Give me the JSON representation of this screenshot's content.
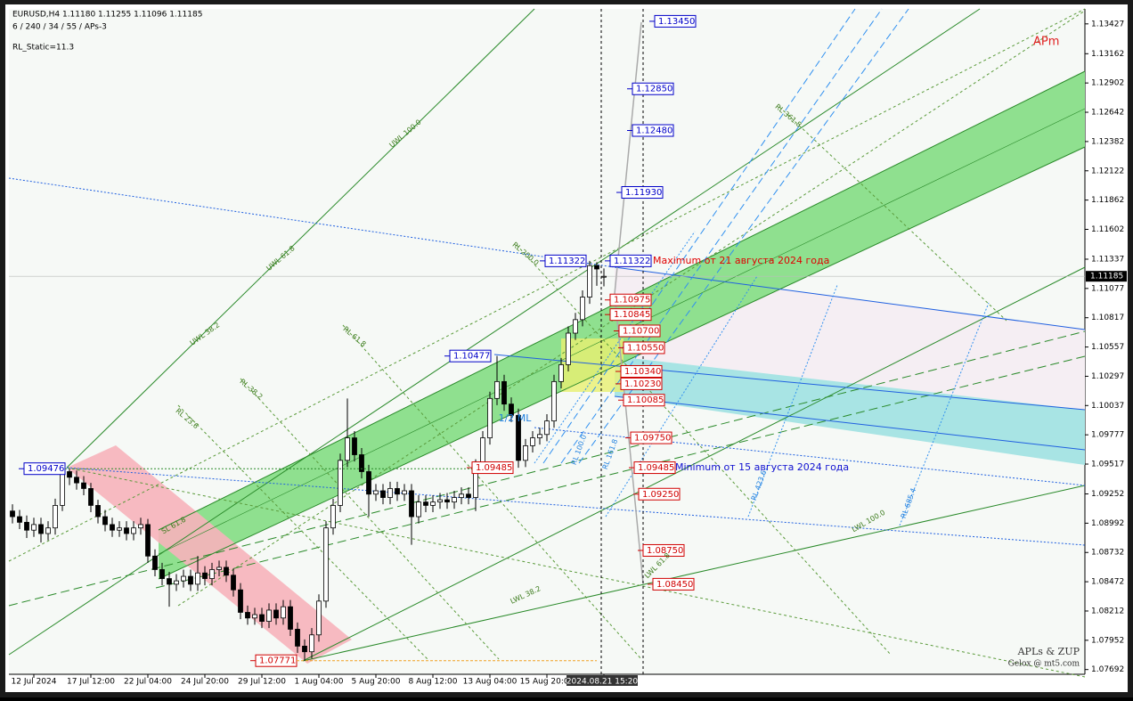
{
  "chart_data": {
    "type": "candlestick",
    "header": "EURUSD,H4  1.11180 1.11255 1.11096 1.11185",
    "subheader": "6 / 240 / 34 / 55 / APs-3",
    "indicator": "RL_Static=11.3",
    "corner_label": "APm",
    "watermark": "APLs & ZUP",
    "watermark_sub": "Gelox @ mt5.com",
    "categories": [
      null,
      null,
      null,
      "12 Jul 2024",
      null,
      null,
      null,
      null,
      null,
      null,
      null,
      "17 Jul 12:00",
      null,
      null,
      null,
      null,
      null,
      null,
      null,
      "22 Jul 04:00",
      null,
      null,
      null,
      null,
      null,
      null,
      null,
      "24 Jul 20:00",
      null,
      null,
      null,
      null,
      null,
      null,
      null,
      "29 Jul 12:00",
      null,
      null,
      null,
      null,
      null,
      null,
      null,
      "1 Aug 04:00",
      null,
      null,
      null,
      null,
      null,
      null,
      null,
      "5 Aug 20:00",
      null,
      null,
      null,
      null,
      null,
      null,
      null,
      "8 Aug 12:00",
      null,
      null,
      null,
      null,
      null,
      null,
      null,
      "13 Aug 04:00",
      null,
      null,
      null,
      null,
      null,
      null,
      null,
      "15 Aug 20:00",
      null,
      null,
      null,
      null,
      null,
      null,
      null,
      "2024.08.21 15:20"
    ],
    "ohlc": [
      [
        1.091,
        1.0916,
        1.0899,
        1.0905
      ],
      [
        1.0905,
        1.0911,
        1.0894,
        1.09
      ],
      [
        1.09,
        1.0906,
        1.0886,
        1.0893
      ],
      [
        1.0893,
        1.0904,
        1.0887,
        1.0898
      ],
      [
        1.0898,
        1.0904,
        1.0882,
        1.089
      ],
      [
        1.089,
        1.0901,
        1.0884,
        1.0895
      ],
      [
        1.0895,
        1.0921,
        1.0889,
        1.0915
      ],
      [
        1.0915,
        1.09476,
        1.091,
        1.0945
      ],
      [
        1.0945,
        1.0947,
        1.0933,
        1.094
      ],
      [
        1.094,
        1.0946,
        1.0929,
        1.0935
      ],
      [
        1.0935,
        1.0941,
        1.0924,
        1.093
      ],
      [
        1.093,
        1.0935,
        1.0909,
        1.0915
      ],
      [
        1.0915,
        1.092,
        1.0899,
        1.0905
      ],
      [
        1.0905,
        1.0911,
        1.0892,
        1.0898
      ],
      [
        1.0898,
        1.0904,
        1.0887,
        1.0893
      ],
      [
        1.0893,
        1.0901,
        1.0887,
        1.0895
      ],
      [
        1.0895,
        1.0901,
        1.0884,
        1.089
      ],
      [
        1.089,
        1.0901,
        1.0884,
        1.0895
      ],
      [
        1.0895,
        1.0904,
        1.0889,
        1.0898
      ],
      [
        1.0898,
        1.0903,
        1.0864,
        1.087
      ],
      [
        1.087,
        1.0876,
        1.0852,
        1.0858
      ],
      [
        1.0858,
        1.0864,
        1.0844,
        1.085
      ],
      [
        1.085,
        1.0856,
        1.0825,
        1.0845
      ],
      [
        1.0845,
        1.0854,
        1.0839,
        1.0848
      ],
      [
        1.0848,
        1.0858,
        1.0842,
        1.0852
      ],
      [
        1.0852,
        1.0858,
        1.0839,
        1.0845
      ],
      [
        1.0845,
        1.087,
        1.0839,
        1.0855
      ],
      [
        1.0855,
        1.0861,
        1.0844,
        1.085
      ],
      [
        1.085,
        1.0864,
        1.0844,
        1.0858
      ],
      [
        1.0858,
        1.0866,
        1.0852,
        1.086
      ],
      [
        1.086,
        1.0866,
        1.0847,
        1.0853
      ],
      [
        1.0853,
        1.0859,
        1.0834,
        1.084
      ],
      [
        1.084,
        1.0846,
        1.0814,
        1.082
      ],
      [
        1.082,
        1.0826,
        1.0809,
        1.0815
      ],
      [
        1.0815,
        1.0824,
        1.0809,
        1.0818
      ],
      [
        1.0818,
        1.0824,
        1.0806,
        1.0812
      ],
      [
        1.0812,
        1.0828,
        1.0806,
        1.0822
      ],
      [
        1.0822,
        1.0828,
        1.0809,
        1.0815
      ],
      [
        1.0815,
        1.0831,
        1.0809,
        1.0825
      ],
      [
        1.0825,
        1.0831,
        1.0799,
        1.0805
      ],
      [
        1.0805,
        1.0811,
        1.0784,
        1.079
      ],
      [
        1.079,
        1.0796,
        1.07771,
        1.0785
      ],
      [
        1.0785,
        1.0806,
        1.0779,
        1.08
      ],
      [
        1.08,
        1.0836,
        1.0794,
        1.083
      ],
      [
        1.083,
        1.0901,
        1.0824,
        1.0895
      ],
      [
        1.0895,
        1.0921,
        1.0889,
        1.0915
      ],
      [
        1.0915,
        1.0961,
        1.0909,
        1.0955
      ],
      [
        1.0955,
        1.101,
        1.0949,
        1.0975
      ],
      [
        1.0975,
        1.0981,
        1.0954,
        1.096
      ],
      [
        1.096,
        1.0966,
        1.0939,
        1.0945
      ],
      [
        1.0945,
        1.0951,
        1.0905,
        1.0925
      ],
      [
        1.0925,
        1.0934,
        1.0919,
        1.0928
      ],
      [
        1.0928,
        1.0934,
        1.0916,
        1.0922
      ],
      [
        1.0922,
        1.0936,
        1.0916,
        1.093
      ],
      [
        1.093,
        1.0936,
        1.0919,
        1.0925
      ],
      [
        1.0925,
        1.0934,
        1.0919,
        1.0928
      ],
      [
        1.0928,
        1.0934,
        1.088,
        1.0905
      ],
      [
        1.0905,
        1.0924,
        1.0899,
        1.0918
      ],
      [
        1.0918,
        1.0924,
        1.0909,
        1.0915
      ],
      [
        1.0915,
        1.0924,
        1.0909,
        1.0918
      ],
      [
        1.0918,
        1.0926,
        1.0912,
        1.092
      ],
      [
        1.092,
        1.0926,
        1.0912,
        1.0918
      ],
      [
        1.0918,
        1.0928,
        1.0912,
        1.0922
      ],
      [
        1.0922,
        1.0931,
        1.0916,
        1.0925
      ],
      [
        1.0925,
        1.0931,
        1.0916,
        1.0922
      ],
      [
        1.0922,
        1.0956,
        1.091,
        1.095
      ],
      [
        1.095,
        1.0981,
        1.0944,
        1.0975
      ],
      [
        1.0975,
        1.1016,
        1.0969,
        1.101
      ],
      [
        1.101,
        1.10477,
        1.1004,
        1.1025
      ],
      [
        1.1025,
        1.1031,
        1.0999,
        1.1005
      ],
      [
        1.1005,
        1.1011,
        1.0989,
        1.0995
      ],
      [
        1.0995,
        1.1001,
        1.09485,
        1.0955
      ],
      [
        1.0955,
        1.0974,
        1.0949,
        1.0968
      ],
      [
        1.0968,
        1.0981,
        1.0962,
        1.0975
      ],
      [
        1.0975,
        1.0984,
        1.0969,
        1.0978
      ],
      [
        1.0978,
        1.0996,
        1.0972,
        1.099
      ],
      [
        1.099,
        1.1031,
        1.0984,
        1.1025
      ],
      [
        1.1025,
        1.1046,
        1.1019,
        1.104
      ],
      [
        1.104,
        1.1074,
        1.1034,
        1.1068
      ],
      [
        1.1068,
        1.1086,
        1.1062,
        1.108
      ],
      [
        1.108,
        1.1106,
        1.1074,
        1.11
      ],
      [
        1.11,
        1.11322,
        1.1094,
        1.1128
      ],
      [
        1.1128,
        1.1131,
        1.111,
        1.1125
      ],
      [
        1.1118,
        1.11255,
        1.11096,
        1.11185
      ]
    ],
    "ylim": [
      1.0765,
      1.1356
    ],
    "yticks": [
      1.13427,
      1.13162,
      1.12902,
      1.12642,
      1.12382,
      1.12122,
      1.11862,
      1.11602,
      1.11337,
      1.11077,
      1.10817,
      1.10557,
      1.10297,
      1.10037,
      1.09777,
      1.09517,
      1.09252,
      1.08992,
      1.08732,
      1.08472,
      1.08212,
      1.07952,
      1.07692
    ],
    "last_price": {
      "value": 1.11185,
      "label": "1.11185"
    },
    "levels": [
      {
        "value": 1.1345,
        "label": "1.13450",
        "color": "#0000c8"
      },
      {
        "value": 1.1285,
        "label": "1.12850",
        "color": "#0000c8"
      },
      {
        "value": 1.1248,
        "label": "1.12480",
        "color": "#0000c8"
      },
      {
        "value": 1.1193,
        "label": "1.11930",
        "color": "#0000c8"
      },
      {
        "value": 1.11322,
        "label": "1.11322",
        "color": "#0000c8"
      },
      {
        "value": 1.11322,
        "label": "1.11322",
        "color": "#0000c8"
      },
      {
        "value": 1.10975,
        "label": "1.10975",
        "color": "#d00000"
      },
      {
        "value": 1.10845,
        "label": "1.10845",
        "color": "#d00000"
      },
      {
        "value": 1.107,
        "label": "1.10700",
        "color": "#d00000"
      },
      {
        "value": 1.1055,
        "label": "1.10550",
        "color": "#d00000"
      },
      {
        "value": 1.1034,
        "label": "1.10340",
        "color": "#d00000"
      },
      {
        "value": 1.1023,
        "label": "1.10230",
        "color": "#d00000"
      },
      {
        "value": 1.10085,
        "label": "1.10085",
        "color": "#d00000"
      },
      {
        "value": 1.0975,
        "label": "1.09750",
        "color": "#d00000"
      },
      {
        "value": 1.09485,
        "label": "1.09485",
        "color": "#d00000"
      },
      {
        "value": 1.09485,
        "label": "1.09485",
        "color": "#d00000"
      },
      {
        "value": 1.0925,
        "label": "1.09250",
        "color": "#d00000"
      },
      {
        "value": 1.0875,
        "label": "1.08750",
        "color": "#d00000"
      },
      {
        "value": 1.0845,
        "label": "1.08450",
        "color": "#d00000"
      },
      {
        "value": 1.10477,
        "label": "1.10477",
        "color": "#0000c8"
      },
      {
        "value": 1.09476,
        "label": "1.09476",
        "color": "#0000c8"
      },
      {
        "value": 1.07771,
        "label": "1.07771",
        "color": "#d00000"
      }
    ],
    "notes": [
      {
        "text": "Maximum от 21 августа 2024 года",
        "color": "#e00000"
      },
      {
        "text": "Minimum от 15 августа 2024 года",
        "color": "#1010d0"
      }
    ],
    "annotations": [
      {
        "text": "UWL 100.0",
        "color": "#3a7a1a"
      },
      {
        "text": "UWL 61.8",
        "color": "#3a7a1a"
      },
      {
        "text": "UWL 38.2",
        "color": "#3a7a1a"
      },
      {
        "text": "RL 61.8",
        "color": "#3a7a1a"
      },
      {
        "text": "RL 38.2",
        "color": "#3a7a1a"
      },
      {
        "text": "RL 23.6",
        "color": "#3a7a1a"
      },
      {
        "text": "RL 200.0",
        "color": "#3a7a1a"
      },
      {
        "text": "RL 361.8",
        "color": "#3a7a1a"
      },
      {
        "text": "1/2 ML",
        "color": "#2080e0"
      },
      {
        "text": "SL 61.8",
        "color": "#3a7a1a"
      },
      {
        "text": "LWL 38.2",
        "color": "#3a7a1a"
      },
      {
        "text": "LWL 61.8",
        "color": "#3a7a1a"
      },
      {
        "text": "LWL 100.0",
        "color": "#3a7a1a"
      },
      {
        "text": "RL 161.8",
        "color": "#2080e0"
      },
      {
        "text": "RL 423.6",
        "color": "#2080e0"
      },
      {
        "text": "RL 685.4",
        "color": "#2080e0"
      },
      {
        "text": "RL 100.0",
        "color": "#2080e0"
      }
    ]
  }
}
